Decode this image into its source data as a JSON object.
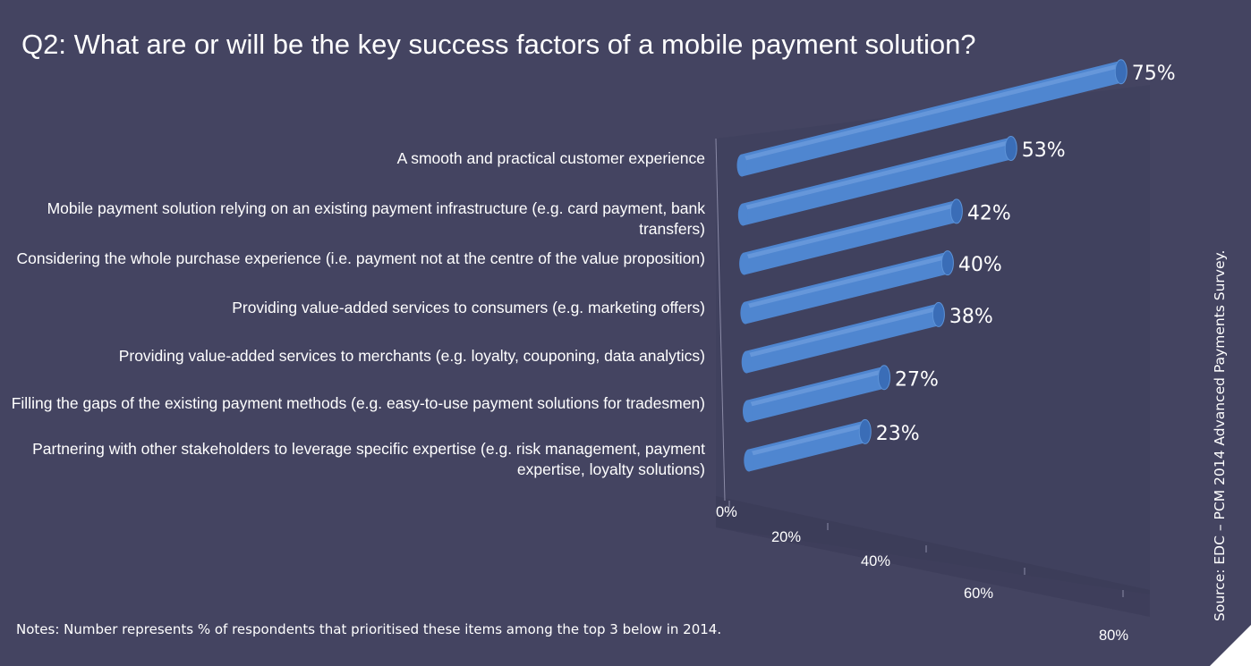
{
  "title": "Q2: What are or will be the key success factors of a mobile payment solution?",
  "notes": "Notes: Number represents % of respondents that prioritised these items among the top 3 below in 2014.",
  "source": "Source: EDC – PCM 2014 Advanced Payments Survey.",
  "colors": {
    "background": "#444461",
    "bar": "#4f86d0",
    "bar_cap": "#3a6db7",
    "wall": "#3e3f5c"
  },
  "chart_data": {
    "type": "bar",
    "orientation": "horizontal",
    "style": "3d-cylinder",
    "categories": [
      "A smooth and practical customer experience",
      "Mobile payment solution relying on an existing payment infrastructure (e.g. card payment, bank transfers)",
      "Considering the whole purchase experience (i.e. payment not at the centre of the value proposition)",
      "Providing value-added services to consumers (e.g. marketing offers)",
      "Providing value-added services to merchants (e.g. loyalty, couponing, data analytics)",
      "Filling the gaps of the existing payment methods (e.g. easy-to-use payment solutions for tradesmen)",
      "Partnering with other stakeholders to leverage specific expertise (e.g. risk management, payment expertise, loyalty solutions)"
    ],
    "values": [
      75,
      53,
      42,
      40,
      38,
      27,
      23
    ],
    "value_labels": [
      "75%",
      "53%",
      "42%",
      "40%",
      "38%",
      "27%",
      "23%"
    ],
    "xlim": [
      0,
      80
    ],
    "ticks": [
      "0%",
      "20%",
      "40%",
      "60%",
      "80%"
    ],
    "legend": "none"
  }
}
